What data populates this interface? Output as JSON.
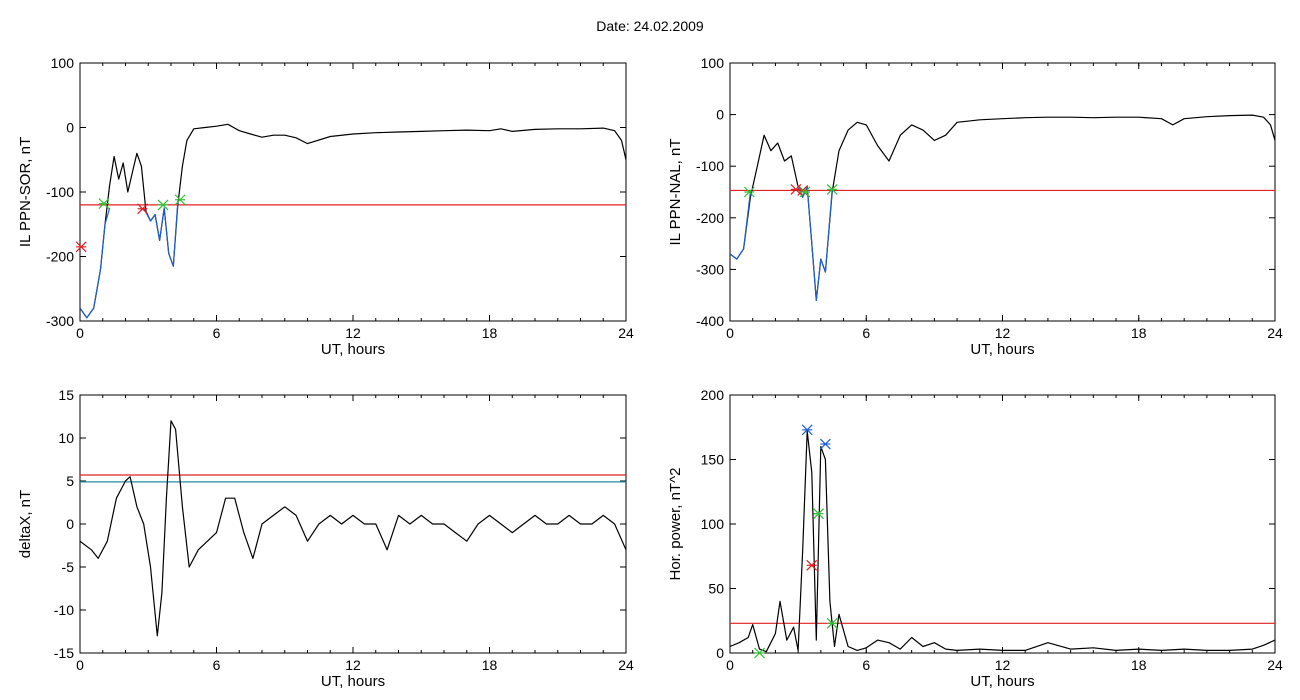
{
  "title": "Date:  24.02.2009",
  "chart_data": [
    {
      "id": "il-ppn-sor",
      "type": "line",
      "title": "",
      "xlabel": "UT, hours",
      "ylabel": "IL PPN-SOR, nT",
      "xlim": [
        0,
        24
      ],
      "ylim": [
        -300,
        100
      ],
      "xticks": [
        "0",
        "6",
        "12",
        "18",
        "24"
      ],
      "yticks": [
        "100",
        "0",
        "-100",
        "-200",
        "-300"
      ],
      "series": [
        {
          "color": "#000000",
          "x": [
            0,
            0.3,
            0.6,
            0.9,
            1.1,
            1.3,
            1.5,
            1.7,
            1.9,
            2.1,
            2.3,
            2.5,
            2.7,
            2.9,
            3.1,
            3.3,
            3.5,
            3.7,
            3.9,
            4.1,
            4.3,
            4.5,
            4.7,
            5.0,
            5.5,
            6.0,
            6.5,
            7.0,
            7.5,
            8.0,
            8.5,
            9.0,
            9.5,
            10.0,
            11,
            12,
            13,
            14,
            15,
            16,
            17,
            18,
            18.5,
            19,
            20,
            21,
            22,
            23,
            23.5,
            23.8,
            24
          ],
          "y": [
            -280,
            -295,
            -280,
            -220,
            -150,
            -90,
            -45,
            -80,
            -55,
            -100,
            -70,
            -40,
            -60,
            -130,
            -145,
            -135,
            -175,
            -125,
            -195,
            -215,
            -120,
            -60,
            -20,
            -2,
            0,
            2,
            5,
            -5,
            -10,
            -15,
            -12,
            -12,
            -16,
            -25,
            -14,
            -10,
            -8,
            -7,
            -6,
            -5,
            -4,
            -5,
            -2,
            -6,
            -3,
            -2,
            -2,
            -1,
            -5,
            -20,
            -50
          ]
        },
        {
          "color": "#1f5fd6",
          "x": [
            0,
            0.3,
            0.6,
            0.9,
            1.1,
            1.3
          ],
          "y": [
            -280,
            -295,
            -280,
            -220,
            -150,
            -125
          ]
        },
        {
          "color": "#1f5fd6",
          "x": [
            2.8,
            3.1,
            3.3,
            3.5,
            3.7,
            3.9,
            4.1,
            4.3
          ],
          "y": [
            -125,
            -145,
            -135,
            -175,
            -125,
            -195,
            -215,
            -115
          ]
        }
      ],
      "threshold_lines": [
        {
          "value": -120,
          "color": "#e02020"
        }
      ],
      "markers": [
        {
          "x": 0.05,
          "y": -185,
          "color": "#e02020"
        },
        {
          "x": 1.05,
          "y": -118,
          "color": "#30c030"
        },
        {
          "x": 2.75,
          "y": -126,
          "color": "#e02020"
        },
        {
          "x": 3.65,
          "y": -120,
          "color": "#30c030"
        },
        {
          "x": 4.4,
          "y": -112,
          "color": "#30c030"
        }
      ]
    },
    {
      "id": "il-ppn-nal",
      "type": "line",
      "title": "",
      "xlabel": "UT, hours",
      "ylabel": "IL PPN-NAL, nT",
      "xlim": [
        0,
        24
      ],
      "ylim": [
        -400,
        100
      ],
      "xticks": [
        "0",
        "6",
        "12",
        "18",
        "24"
      ],
      "yticks": [
        "100",
        "0",
        "-100",
        "-200",
        "-300",
        "-400"
      ],
      "series": [
        {
          "color": "#000000",
          "x": [
            0,
            0.3,
            0.6,
            0.9,
            1.2,
            1.5,
            1.8,
            2.1,
            2.4,
            2.7,
            3.0,
            3.2,
            3.4,
            3.6,
            3.8,
            4.0,
            4.2,
            4.5,
            4.8,
            5.2,
            5.6,
            6.0,
            6.5,
            7.0,
            7.5,
            8.0,
            8.5,
            9.0,
            9.5,
            10.0,
            11,
            12,
            13,
            14,
            15,
            16,
            17,
            18,
            19,
            19.5,
            20,
            21,
            22,
            23,
            23.5,
            23.8,
            24
          ],
          "y": [
            -270,
            -280,
            -260,
            -160,
            -100,
            -40,
            -70,
            -55,
            -90,
            -80,
            -140,
            -160,
            -140,
            -250,
            -360,
            -280,
            -305,
            -150,
            -70,
            -30,
            -15,
            -20,
            -60,
            -90,
            -40,
            -20,
            -30,
            -50,
            -40,
            -15,
            -10,
            -8,
            -6,
            -5,
            -5,
            -6,
            -5,
            -5,
            -8,
            -20,
            -8,
            -4,
            -2,
            -1,
            -5,
            -20,
            -50
          ]
        },
        {
          "color": "#1f5fd6",
          "x": [
            0,
            0.3,
            0.6,
            0.9
          ],
          "y": [
            -270,
            -280,
            -260,
            -150
          ]
        },
        {
          "color": "#1f5fd6",
          "x": [
            3.0,
            3.2,
            3.4,
            3.6,
            3.8,
            4.0,
            4.2,
            4.5
          ],
          "y": [
            -140,
            -160,
            -140,
            -250,
            -360,
            -280,
            -305,
            -145
          ]
        }
      ],
      "threshold_lines": [
        {
          "value": -147,
          "color": "#e02020"
        }
      ],
      "markers": [
        {
          "x": 0.85,
          "y": -150,
          "color": "#30c030"
        },
        {
          "x": 2.9,
          "y": -145,
          "color": "#e02020"
        },
        {
          "x": 3.2,
          "y": -147,
          "color": "#e02020"
        },
        {
          "x": 3.3,
          "y": -150,
          "color": "#30c030"
        },
        {
          "x": 4.5,
          "y": -145,
          "color": "#30c030"
        }
      ]
    },
    {
      "id": "deltax",
      "type": "line",
      "title": "",
      "xlabel": "UT, hours",
      "ylabel": "deltaX, nT",
      "xlim": [
        0,
        24
      ],
      "ylim": [
        -15,
        15
      ],
      "xticks": [
        "0",
        "6",
        "12",
        "18",
        "24"
      ],
      "yticks": [
        "15",
        "10",
        "5",
        "0",
        "-5",
        "-10",
        "-15"
      ],
      "series": [
        {
          "color": "#000000",
          "x": [
            0,
            0.5,
            0.8,
            1.2,
            1.6,
            2.0,
            2.2,
            2.5,
            2.8,
            3.1,
            3.4,
            3.6,
            3.8,
            4.0,
            4.2,
            4.5,
            4.8,
            5.2,
            5.6,
            6.0,
            6.4,
            6.8,
            7.2,
            7.6,
            8.0,
            8.5,
            9.0,
            9.5,
            10.0,
            10.5,
            11,
            11.5,
            12,
            12.5,
            13,
            13.5,
            14,
            14.5,
            15,
            15.5,
            16,
            16.5,
            17,
            17.5,
            18,
            18.5,
            19,
            19.5,
            20,
            20.5,
            21,
            21.5,
            22,
            22.5,
            23,
            23.5,
            24
          ],
          "y": [
            -2,
            -3,
            -4,
            -2,
            3,
            5,
            5.5,
            2,
            0,
            -5,
            -13,
            -8,
            3,
            12,
            11,
            2,
            -5,
            -3,
            -2,
            -1,
            3,
            3,
            -1,
            -4,
            0,
            1,
            2,
            1,
            -2,
            0,
            1,
            0,
            1,
            0,
            0,
            -3,
            1,
            0,
            1,
            0,
            0,
            -1,
            -2,
            0,
            1,
            0,
            -1,
            0,
            1,
            0,
            0,
            1,
            0,
            0,
            1,
            0,
            -3
          ]
        }
      ],
      "threshold_lines": [
        {
          "value": 5.7,
          "color": "#e02020"
        },
        {
          "value": 4.9,
          "color": "#1f8fa0"
        }
      ]
    },
    {
      "id": "hor-power",
      "type": "line",
      "title": "",
      "xlabel": "UT, hours",
      "ylabel": "Hor. power, nT^2",
      "xlim": [
        0,
        24
      ],
      "ylim": [
        0,
        200
      ],
      "xticks": [
        "0",
        "6",
        "12",
        "18",
        "24"
      ],
      "yticks": [
        "200",
        "150",
        "100",
        "50",
        "0"
      ],
      "series": [
        {
          "color": "#000000",
          "x": [
            0,
            0.4,
            0.8,
            1.0,
            1.3,
            1.6,
            2.0,
            2.2,
            2.5,
            2.8,
            3.0,
            3.2,
            3.4,
            3.6,
            3.8,
            4.0,
            4.2,
            4.4,
            4.6,
            4.8,
            5.2,
            5.6,
            6.0,
            6.5,
            7.0,
            7.5,
            8.0,
            8.5,
            9.0,
            9.5,
            10,
            11,
            12,
            13,
            14,
            15,
            16,
            17,
            18,
            19,
            20,
            21,
            22,
            23,
            23.5,
            24
          ],
          "y": [
            5,
            8,
            12,
            22,
            3,
            1,
            15,
            40,
            10,
            20,
            2,
            80,
            172,
            140,
            10,
            160,
            150,
            40,
            5,
            30,
            5,
            2,
            4,
            10,
            8,
            3,
            12,
            5,
            8,
            3,
            2,
            3,
            2,
            2,
            8,
            3,
            4,
            2,
            3,
            2,
            3,
            2,
            2,
            3,
            6,
            10
          ]
        }
      ],
      "threshold_lines": [
        {
          "value": 23,
          "color": "#e02020"
        }
      ],
      "markers": [
        {
          "x": 1.3,
          "y": 0,
          "color": "#30c030"
        },
        {
          "x": 3.4,
          "y": 173,
          "color": "#1f5fd6"
        },
        {
          "x": 3.6,
          "y": 68,
          "color": "#e02020"
        },
        {
          "x": 3.9,
          "y": 108,
          "color": "#30c030"
        },
        {
          "x": 4.2,
          "y": 162,
          "color": "#1f5fd6"
        },
        {
          "x": 4.5,
          "y": 23,
          "color": "#30c030"
        }
      ]
    }
  ]
}
